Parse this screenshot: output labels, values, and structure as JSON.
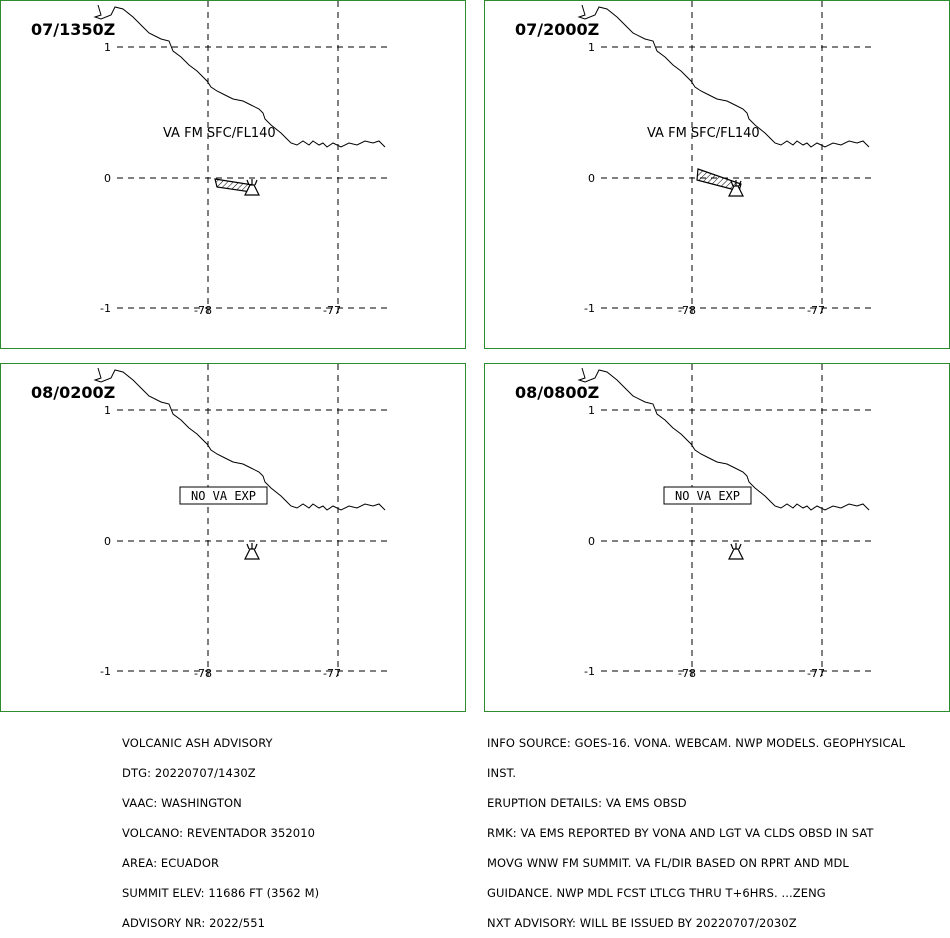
{
  "panels": [
    {
      "time": "07/1350Z",
      "label": "VA FM SFC/FL140",
      "label_type": "text",
      "plume": "small"
    },
    {
      "time": "07/2000Z",
      "label": "VA FM SFC/FL140",
      "label_type": "text",
      "plume": "large"
    },
    {
      "time": "08/0200Z",
      "label": "NO VA EXP",
      "label_type": "box",
      "plume": "none"
    },
    {
      "time": "08/0800Z",
      "label": "NO VA EXP",
      "label_type": "box",
      "plume": "none"
    }
  ],
  "axes": {
    "lat_labels": [
      "1",
      "0",
      "-1"
    ],
    "lon_labels": [
      "-78",
      "-77"
    ]
  },
  "advisory_left": [
    "VOLCANIC ASH ADVISORY",
    "DTG: 20220707/1430Z",
    "VAAC: WASHINGTON",
    "VOLCANO: REVENTADOR 352010",
    "AREA: ECUADOR",
    "SUMMIT ELEV: 11686 FT (3562 M)",
    "ADVISORY NR: 2022/551"
  ],
  "advisory_right": [
    "INFO SOURCE: GOES-16. VONA. WEBCAM. NWP MODELS. GEOPHYSICAL",
    "INST.",
    "ERUPTION DETAILS: VA EMS OBSD",
    "RMK: VA EMS REPORTED BY VONA AND LGT VA CLDS OBSD IN SAT",
    "MOVG WNW FM SUMMIT. VA FL/DIR BASED ON RPRT AND MDL",
    "GUIDANCE. NWP MDL FCST LTLCG THRU T+6HRS. ...ZENG",
    "NXT ADVISORY: WILL BE ISSUED BY 20220707/2030Z"
  ],
  "colors": {
    "border": "#2e8b2e",
    "lines": "#000000"
  }
}
